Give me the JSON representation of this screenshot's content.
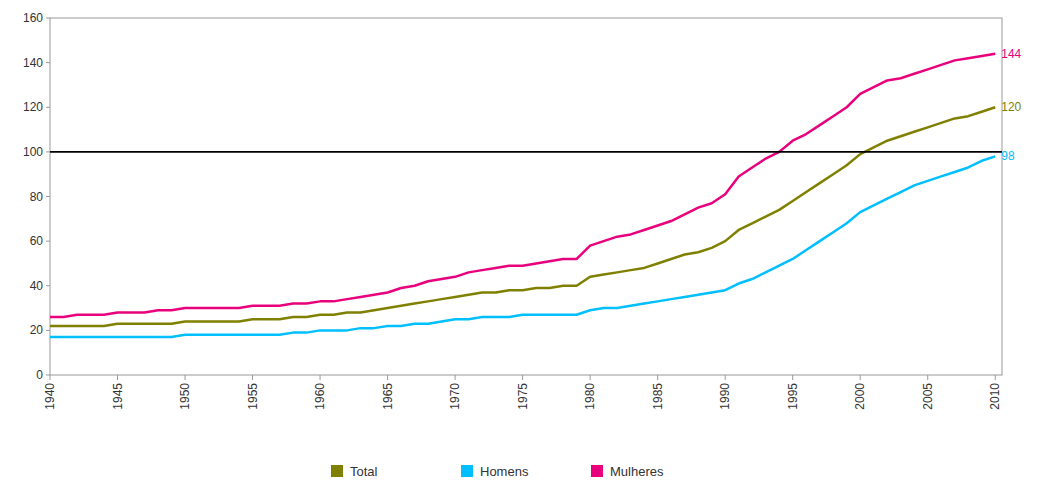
{
  "chart_data": {
    "type": "line",
    "x": [
      1940,
      1941,
      1942,
      1943,
      1944,
      1945,
      1946,
      1947,
      1948,
      1949,
      1950,
      1951,
      1952,
      1953,
      1954,
      1955,
      1956,
      1957,
      1958,
      1959,
      1960,
      1961,
      1962,
      1963,
      1964,
      1965,
      1966,
      1967,
      1968,
      1969,
      1970,
      1971,
      1972,
      1973,
      1974,
      1975,
      1976,
      1977,
      1978,
      1979,
      1980,
      1981,
      1982,
      1983,
      1984,
      1985,
      1986,
      1987,
      1988,
      1989,
      1990,
      1991,
      1992,
      1993,
      1994,
      1995,
      1996,
      1997,
      1998,
      1999,
      2000,
      2001,
      2002,
      2003,
      2004,
      2005,
      2006,
      2007,
      2008,
      2009,
      2010
    ],
    "series": [
      {
        "name": "Total",
        "color": "#808000",
        "end_label": 120,
        "values": [
          22,
          22,
          22,
          22,
          22,
          23,
          23,
          23,
          23,
          23,
          24,
          24,
          24,
          24,
          24,
          25,
          25,
          25,
          26,
          26,
          27,
          27,
          28,
          28,
          29,
          30,
          31,
          32,
          33,
          34,
          35,
          36,
          37,
          37,
          38,
          38,
          39,
          39,
          40,
          40,
          44,
          45,
          46,
          47,
          48,
          50,
          52,
          54,
          55,
          57,
          60,
          65,
          68,
          71,
          74,
          78,
          82,
          86,
          90,
          94,
          99,
          102,
          105,
          107,
          109,
          111,
          113,
          115,
          116,
          118,
          120
        ]
      },
      {
        "name": "Homens",
        "color": "#00BFFF",
        "end_label": 98,
        "values": [
          17,
          17,
          17,
          17,
          17,
          17,
          17,
          17,
          17,
          17,
          18,
          18,
          18,
          18,
          18,
          18,
          18,
          18,
          19,
          19,
          20,
          20,
          20,
          21,
          21,
          22,
          22,
          23,
          23,
          24,
          25,
          25,
          26,
          26,
          26,
          27,
          27,
          27,
          27,
          27,
          29,
          30,
          30,
          31,
          32,
          33,
          34,
          35,
          36,
          37,
          38,
          41,
          43,
          46,
          49,
          52,
          56,
          60,
          64,
          68,
          73,
          76,
          79,
          82,
          85,
          87,
          89,
          91,
          93,
          96,
          98
        ]
      },
      {
        "name": "Mulheres",
        "color": "#E8007D",
        "end_label": 144,
        "values": [
          26,
          26,
          27,
          27,
          27,
          28,
          28,
          28,
          29,
          29,
          30,
          30,
          30,
          30,
          30,
          31,
          31,
          31,
          32,
          32,
          33,
          33,
          34,
          35,
          36,
          37,
          39,
          40,
          42,
          43,
          44,
          46,
          47,
          48,
          49,
          49,
          50,
          51,
          52,
          52,
          58,
          60,
          62,
          63,
          65,
          67,
          69,
          72,
          75,
          77,
          81,
          89,
          93,
          97,
          100,
          105,
          108,
          112,
          116,
          120,
          126,
          129,
          132,
          133,
          135,
          137,
          139,
          141,
          142,
          143,
          144
        ]
      }
    ],
    "reference_line": {
      "value": 100,
      "color": "#000000"
    },
    "xlim": [
      1940,
      2010.5
    ],
    "xticks": [
      1940,
      1945,
      1950,
      1955,
      1960,
      1965,
      1970,
      1975,
      1980,
      1985,
      1990,
      1995,
      2000,
      2005,
      2010
    ],
    "ylim": [
      0,
      160
    ],
    "yticks": [
      0,
      20,
      40,
      60,
      80,
      100,
      120,
      140,
      160
    ],
    "grid": false,
    "legend": "bottom"
  }
}
